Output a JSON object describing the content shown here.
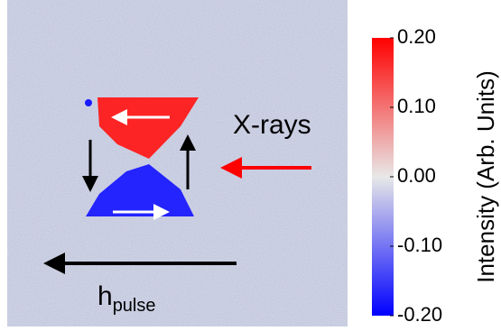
{
  "figure": {
    "annotations": {
      "xrays": "X-rays",
      "field": "h",
      "field_sub": "pulse"
    },
    "colorbar": {
      "label": "Intensity (Arb. Units)",
      "lim": [
        -0.2,
        0.2
      ],
      "ticks": [
        {
          "value": 0.2,
          "label": "0.20"
        },
        {
          "value": 0.1,
          "label": "0.10"
        },
        {
          "value": 0,
          "label": "0.00"
        },
        {
          "value": -0.1,
          "label": "-0.10"
        },
        {
          "value": -0.2,
          "label": "-0.20"
        }
      ]
    }
  }
}
